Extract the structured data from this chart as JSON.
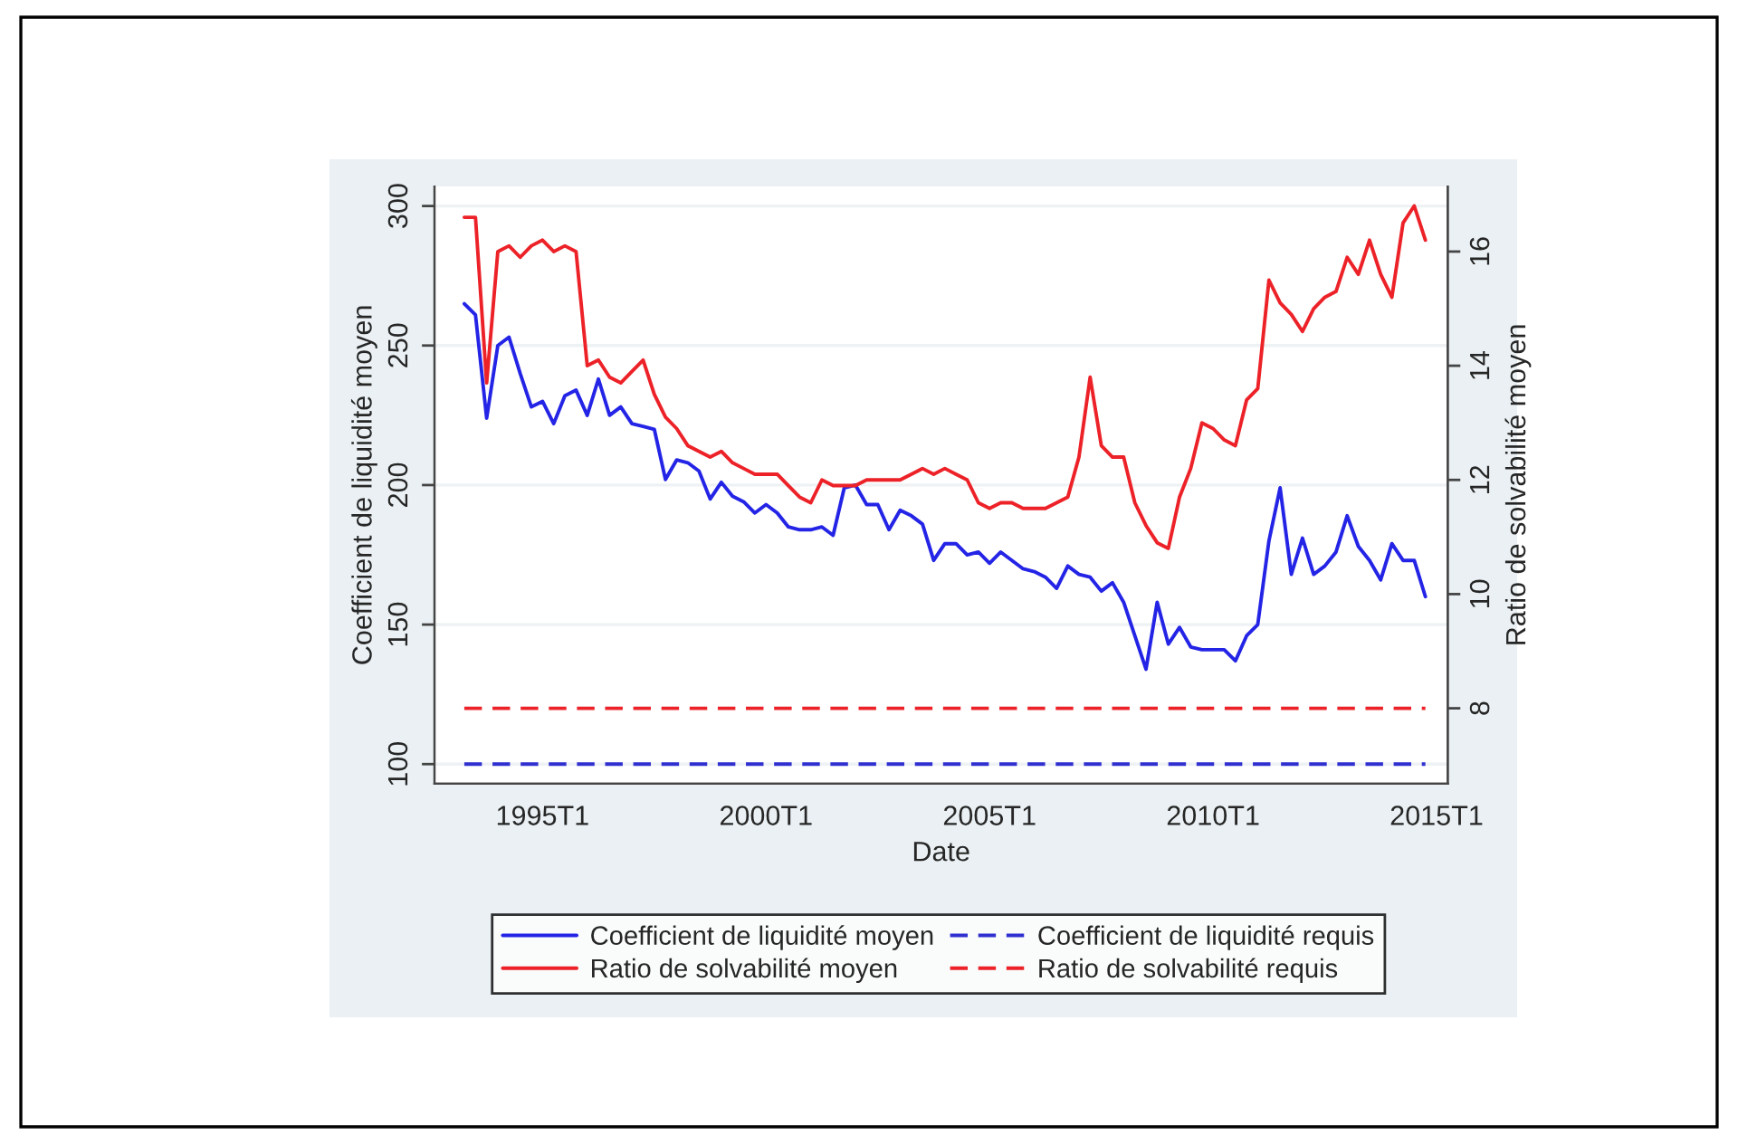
{
  "chart_data": {
    "type": "line",
    "xlabel": "Date",
    "ylabel": "Coefficient de liquidité moyen",
    "y2label": "Ratio de solvabilité moyen",
    "x": [
      "1993-04",
      "1993-07",
      "1993-10",
      "1994-01",
      "1994-04",
      "1994-07",
      "1994-10",
      "1995-01",
      "1995-04",
      "1995-07",
      "1995-10",
      "1996-01",
      "1996-04",
      "1996-07",
      "1996-10",
      "1997-01",
      "1997-04",
      "1997-07",
      "1997-10",
      "1998-01",
      "1998-04",
      "1998-07",
      "1998-10",
      "1999-01",
      "1999-04",
      "1999-07",
      "1999-10",
      "2000-01",
      "2000-04",
      "2000-07",
      "2000-10",
      "2001-01",
      "2001-04",
      "2001-07",
      "2001-10",
      "2002-01",
      "2002-04",
      "2002-07",
      "2002-10",
      "2003-01",
      "2003-04",
      "2003-07",
      "2003-10",
      "2004-01",
      "2004-04",
      "2004-07",
      "2004-10",
      "2005-01",
      "2005-04",
      "2005-07",
      "2005-10",
      "2006-01",
      "2006-04",
      "2006-07",
      "2006-10",
      "2007-01",
      "2007-04",
      "2007-07",
      "2007-10",
      "2008-01",
      "2008-04",
      "2008-07",
      "2008-10",
      "2009-01",
      "2009-04",
      "2009-07",
      "2009-10",
      "2010-01",
      "2010-04",
      "2010-07",
      "2010-10",
      "2011-01",
      "2011-04",
      "2011-07",
      "2011-10",
      "2012-01",
      "2012-04",
      "2012-07",
      "2012-10",
      "2013-01",
      "2013-04",
      "2013-07",
      "2013-10",
      "2014-01",
      "2014-04",
      "2014-07",
      "2014-10"
    ],
    "series": [
      {
        "name": "Coefficient de liquidité moyen",
        "color": "#2424e6",
        "line_style": "solid",
        "values": [
          265,
          261,
          224,
          250,
          253,
          240,
          228,
          230,
          222,
          232,
          234,
          225,
          238,
          225,
          228,
          222,
          221,
          220,
          202,
          209,
          208,
          205,
          195,
          201,
          196,
          194,
          190,
          193,
          190,
          185,
          184,
          184,
          185,
          182,
          199,
          200,
          193,
          193,
          184,
          191,
          189,
          186,
          173,
          179,
          179,
          175,
          176,
          172,
          176,
          173,
          170,
          169,
          167,
          163,
          171,
          168,
          167,
          162,
          165,
          158,
          146,
          134,
          158,
          143,
          149,
          142,
          141,
          141,
          141,
          137,
          146,
          150,
          180,
          199,
          168,
          181,
          168,
          171,
          176,
          189,
          178,
          173,
          166,
          179,
          173,
          173,
          160
        ]
      },
      {
        "name": "Ratio de solvabilité moyen",
        "color": "#ec2228",
        "axis": "y2",
        "line_style": "solid",
        "values": [
          16.6,
          16.6,
          13.7,
          16.0,
          16.1,
          15.9,
          16.1,
          16.2,
          16.0,
          16.1,
          16.0,
          14.0,
          14.1,
          13.8,
          13.7,
          13.9,
          14.1,
          13.5,
          13.1,
          12.9,
          12.6,
          12.5,
          12.4,
          12.5,
          12.3,
          12.2,
          12.1,
          12.1,
          12.1,
          11.9,
          11.7,
          11.6,
          12.0,
          11.9,
          11.9,
          11.9,
          12.0,
          12.0,
          12.0,
          12.0,
          12.1,
          12.2,
          12.1,
          12.2,
          12.1,
          12.0,
          11.6,
          11.5,
          11.6,
          11.6,
          11.5,
          11.5,
          11.5,
          11.6,
          11.7,
          12.4,
          13.8,
          12.6,
          12.4,
          12.4,
          11.6,
          11.2,
          10.9,
          10.8,
          11.7,
          12.2,
          13.0,
          12.9,
          12.7,
          12.6,
          13.4,
          13.6,
          15.5,
          15.1,
          14.9,
          14.6,
          15.0,
          15.2,
          15.3,
          15.9,
          15.6,
          16.2,
          15.6,
          15.2,
          16.5,
          16.8,
          16.2
        ]
      },
      {
        "name": "Coefficient de liquidité requis",
        "color": "#3030d0",
        "line_style": "dashed",
        "values": [
          100,
          100,
          100,
          100,
          100,
          100,
          100,
          100,
          100,
          100,
          100,
          100,
          100,
          100,
          100,
          100,
          100,
          100,
          100,
          100,
          100,
          100,
          100,
          100,
          100,
          100,
          100,
          100,
          100,
          100,
          100,
          100,
          100,
          100,
          100,
          100,
          100,
          100,
          100,
          100,
          100,
          100,
          100,
          100,
          100,
          100,
          100,
          100,
          100,
          100,
          100,
          100,
          100,
          100,
          100,
          100,
          100,
          100,
          100,
          100,
          100,
          100,
          100,
          100,
          100,
          100,
          100,
          100,
          100,
          100,
          100,
          100,
          100,
          100,
          100,
          100,
          100,
          100,
          100,
          100,
          100,
          100,
          100,
          100,
          100,
          100,
          100
        ]
      },
      {
        "name": "Ratio de solvabilité requis",
        "color": "#ec2228",
        "axis": "y2",
        "line_style": "dashed",
        "values": [
          8,
          8,
          8,
          8,
          8,
          8,
          8,
          8,
          8,
          8,
          8,
          8,
          8,
          8,
          8,
          8,
          8,
          8,
          8,
          8,
          8,
          8,
          8,
          8,
          8,
          8,
          8,
          8,
          8,
          8,
          8,
          8,
          8,
          8,
          8,
          8,
          8,
          8,
          8,
          8,
          8,
          8,
          8,
          8,
          8,
          8,
          8,
          8,
          8,
          8,
          8,
          8,
          8,
          8,
          8,
          8,
          8,
          8,
          8,
          8,
          8,
          8,
          8,
          8,
          8,
          8,
          8,
          8,
          8,
          8,
          8,
          8,
          8,
          8,
          8,
          8,
          8,
          8,
          8,
          8,
          8,
          8,
          8,
          8,
          8,
          8,
          8
        ]
      }
    ],
    "xlim": [
      "1992-08",
      "2015-04"
    ],
    "xticks": [
      {
        "value": "1995-01",
        "label": "1995T1"
      },
      {
        "value": "2000-01",
        "label": "2000T1"
      },
      {
        "value": "2005-01",
        "label": "2005T1"
      },
      {
        "value": "2010-01",
        "label": "2010T1"
      },
      {
        "value": "2015-01",
        "label": "2015T1"
      }
    ],
    "ylim": [
      93,
      307
    ],
    "yticks": [
      100,
      150,
      200,
      250,
      300
    ],
    "y2lim": [
      6.68,
      17.14
    ],
    "y2ticks": [
      8,
      10,
      12,
      14,
      16
    ],
    "grid": "y",
    "legend": "bottom"
  }
}
